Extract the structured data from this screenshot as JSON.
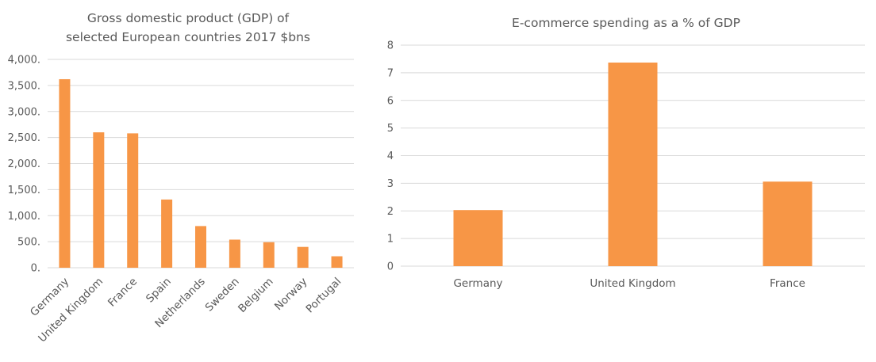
{
  "chart_data": [
    {
      "type": "bar",
      "title_lines": [
        "Gross domestic product (GDP) of",
        "selected European countries 2017 $bns"
      ],
      "categories": [
        "Germany",
        "United Kingdom",
        "France",
        "Spain",
        "Netherlands",
        "Sweden",
        "Belgium",
        "Norway",
        "Portugal"
      ],
      "values": [
        3620,
        2600,
        2580,
        1310,
        800,
        540,
        490,
        400,
        220
      ],
      "ylim": [
        0,
        4000
      ],
      "yticks": [
        0,
        500,
        1000,
        1500,
        2000,
        2500,
        3000,
        3500,
        4000
      ],
      "ytick_labels": [
        "0.",
        "500.",
        "1,000.",
        "1,500.",
        "2,000.",
        "2,500.",
        "3,000.",
        "3,500.",
        "4,000."
      ],
      "grid": true,
      "color": "#F79646"
    },
    {
      "type": "bar",
      "title_lines": [
        "E-commerce  spending as a % of GDP"
      ],
      "categories": [
        "Germany",
        "United Kingdom",
        "France"
      ],
      "values": [
        2.03,
        7.37,
        3.06
      ],
      "ylim": [
        0,
        8
      ],
      "yticks": [
        0,
        1,
        2,
        3,
        4,
        5,
        6,
        7,
        8
      ],
      "ytick_labels": [
        "0",
        "1",
        "2",
        "3",
        "4",
        "5",
        "6",
        "7",
        "8"
      ],
      "grid": true,
      "color": "#F79646"
    }
  ]
}
